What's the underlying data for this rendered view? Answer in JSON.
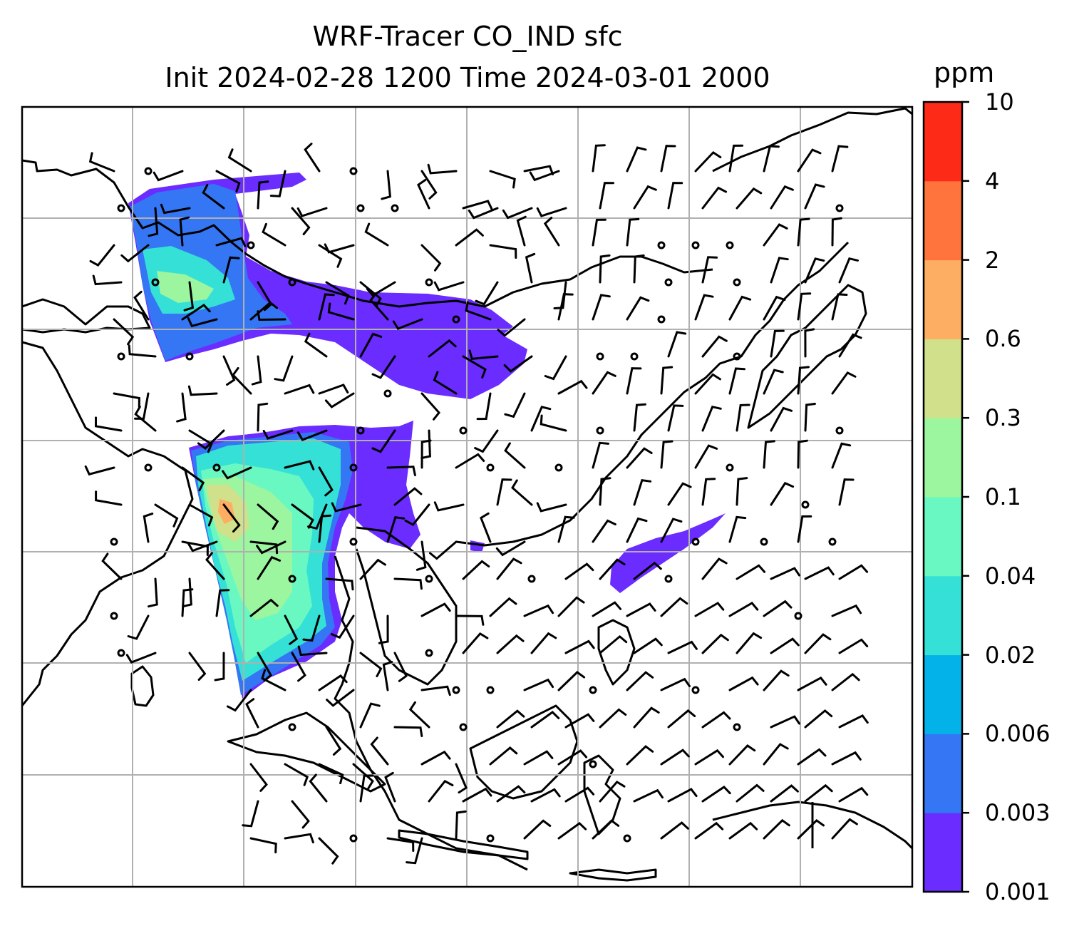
{
  "title": {
    "line1": "WRF-Tracer CO_IND sfc",
    "line2": "Init 2024-02-28 1200 Time 2024-03-01 2000"
  },
  "colorbar": {
    "unit": "ppm",
    "levels": [
      "0.001",
      "0.003",
      "0.006",
      "0.02",
      "0.04",
      "0.1",
      "0.3",
      "0.6",
      "2",
      "4",
      "10"
    ],
    "colors": [
      "#6a2cff",
      "#3476f3",
      "#04b2ea",
      "#35e0d6",
      "#69f8c2",
      "#9cf59f",
      "#d1e08a",
      "#fdae63",
      "#fe743c",
      "#fe2a18"
    ]
  },
  "map": {
    "gridlines": true,
    "projection_frame": "lat-lon box, South/Southeast/East Asia",
    "overlay": "wind barbs and calm circles"
  }
}
